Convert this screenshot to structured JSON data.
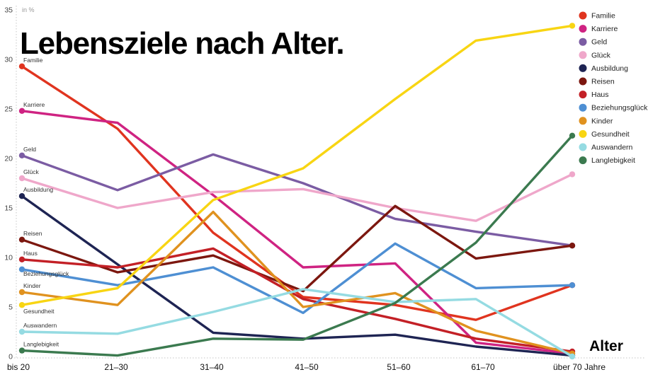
{
  "title": "Lebensziele nach Alter.",
  "y_axis": {
    "unit_label": "in %",
    "min": 0,
    "max": 35,
    "ticks": [
      0,
      5,
      10,
      15,
      20,
      25,
      30,
      35
    ]
  },
  "x_axis": {
    "title": "Alter",
    "categories": [
      "bis 20",
      "21–30",
      "31–40",
      "41–50",
      "51–60",
      "61–70",
      "über 70 Jahre"
    ]
  },
  "legend": {
    "position": "top-right"
  },
  "chart_data": {
    "type": "line",
    "title": "Lebensziele nach Alter.",
    "xlabel": "Alter",
    "ylabel": "in %",
    "ylim": [
      0,
      35
    ],
    "grid": false,
    "legend_position": "top-right",
    "categories": [
      "bis 20",
      "21–30",
      "31–40",
      "41–50",
      "51–60",
      "61–70",
      "über 70 Jahre"
    ],
    "series": [
      {
        "name": "Familie",
        "color": "#e0341f",
        "values": [
          29.3,
          23.0,
          12.5,
          6.0,
          5.2,
          3.7,
          7.2
        ]
      },
      {
        "name": "Karriere",
        "color": "#cf2382",
        "values": [
          24.8,
          23.6,
          16.3,
          9.0,
          9.4,
          1.4,
          0.3
        ]
      },
      {
        "name": "Geld",
        "color": "#7b5ca3",
        "values": [
          20.3,
          16.8,
          20.4,
          17.5,
          13.9,
          12.6,
          11.2
        ]
      },
      {
        "name": "Glück",
        "color": "#efa7ca",
        "values": [
          18.0,
          15.0,
          16.6,
          16.9,
          15.0,
          13.7,
          18.4
        ]
      },
      {
        "name": "Ausbildung",
        "color": "#1e2453",
        "values": [
          16.2,
          9.3,
          2.4,
          1.8,
          2.2,
          1.0,
          0.1
        ]
      },
      {
        "name": "Reisen",
        "color": "#7c170f",
        "values": [
          11.8,
          8.5,
          10.2,
          6.6,
          15.2,
          9.9,
          11.2
        ]
      },
      {
        "name": "Haus",
        "color": "#c32026",
        "values": [
          9.8,
          9.0,
          10.9,
          5.8,
          3.8,
          1.8,
          0.5
        ]
      },
      {
        "name": "Beziehungsglück",
        "color": "#4e8fd3",
        "values": [
          8.8,
          7.2,
          9.0,
          4.4,
          11.4,
          6.9,
          7.2
        ]
      },
      {
        "name": "Kinder",
        "color": "#e0921f",
        "values": [
          6.5,
          5.2,
          14.6,
          5.0,
          6.4,
          2.6,
          0.3
        ]
      },
      {
        "name": "Gesundheit",
        "color": "#f8d513",
        "values": [
          5.2,
          6.9,
          15.8,
          19.0,
          26.0,
          31.9,
          33.4
        ]
      },
      {
        "name": "Auswandern",
        "color": "#95dbe2",
        "values": [
          2.5,
          2.3,
          4.5,
          6.8,
          5.5,
          5.8,
          0.0
        ]
      },
      {
        "name": "Langlebigkeit",
        "color": "#3b7a4f",
        "values": [
          0.6,
          0.1,
          1.8,
          1.7,
          5.4,
          11.5,
          22.3
        ]
      }
    ]
  }
}
